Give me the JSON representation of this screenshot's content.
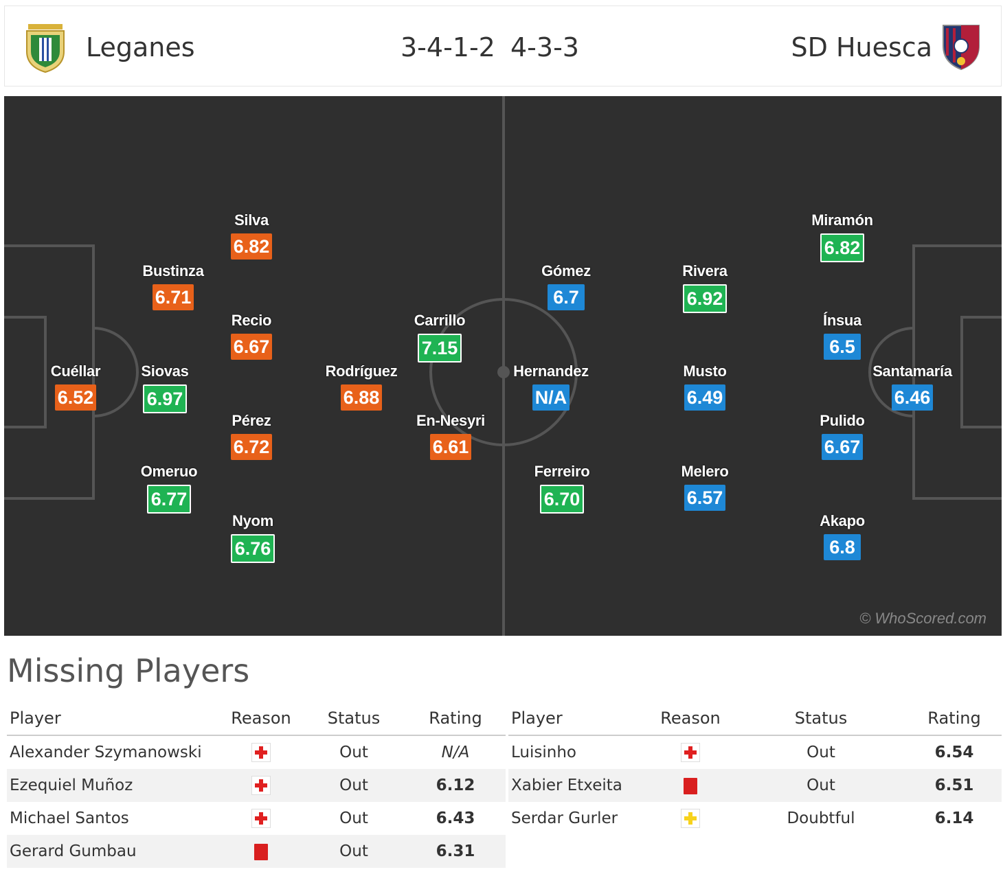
{
  "header": {
    "home_team": "Leganes",
    "away_team": "SD Huesca",
    "home_formation": "3-4-1-2",
    "away_formation": "4-3-3"
  },
  "colors": {
    "pitch": "#2f2f2f",
    "rating_orange": "#e8611a",
    "rating_green": "#1fb353",
    "rating_blue": "#1e88d6"
  },
  "pitch": {
    "watermark": "© WhoScored.com",
    "home_players": [
      {
        "name": "Cuéllar",
        "rating": "6.52",
        "color": "orange"
      },
      {
        "name": "Bustinza",
        "rating": "6.71",
        "color": "orange"
      },
      {
        "name": "Siovas",
        "rating": "6.97",
        "color": "green"
      },
      {
        "name": "Omeruo",
        "rating": "6.77",
        "color": "green"
      },
      {
        "name": "Silva",
        "rating": "6.82",
        "color": "orange"
      },
      {
        "name": "Recio",
        "rating": "6.67",
        "color": "orange"
      },
      {
        "name": "Pérez",
        "rating": "6.72",
        "color": "orange"
      },
      {
        "name": "Nyom",
        "rating": "6.76",
        "color": "green"
      },
      {
        "name": "Rodríguez",
        "rating": "6.88",
        "color": "orange"
      },
      {
        "name": "Carrillo",
        "rating": "7.15",
        "color": "green"
      },
      {
        "name": "En-Nesyri",
        "rating": "6.61",
        "color": "orange"
      }
    ],
    "away_players": [
      {
        "name": "Gómez",
        "rating": "6.7",
        "color": "blue"
      },
      {
        "name": "Hernandez",
        "rating": "N/A",
        "color": "blue"
      },
      {
        "name": "Ferreiro",
        "rating": "6.70",
        "color": "green"
      },
      {
        "name": "Rivera",
        "rating": "6.92",
        "color": "green"
      },
      {
        "name": "Musto",
        "rating": "6.49",
        "color": "blue"
      },
      {
        "name": "Melero",
        "rating": "6.57",
        "color": "blue"
      },
      {
        "name": "Miramón",
        "rating": "6.82",
        "color": "green"
      },
      {
        "name": "Ínsua",
        "rating": "6.5",
        "color": "blue"
      },
      {
        "name": "Pulido",
        "rating": "6.67",
        "color": "blue"
      },
      {
        "name": "Akapo",
        "rating": "6.8",
        "color": "blue"
      },
      {
        "name": "Santamaría",
        "rating": "6.46",
        "color": "blue"
      }
    ]
  },
  "missing": {
    "title": "Missing Players",
    "columns": [
      "Player",
      "Reason",
      "Status",
      "Rating"
    ],
    "home": [
      {
        "player": "Alexander Szymanowski",
        "reason_icon": "injury-icon",
        "status": "Out",
        "rating": "N/A"
      },
      {
        "player": "Ezequiel Muñoz",
        "reason_icon": "injury-icon",
        "status": "Out",
        "rating": "6.12"
      },
      {
        "player": "Michael Santos",
        "reason_icon": "injury-icon",
        "status": "Out",
        "rating": "6.43"
      },
      {
        "player": "Gerard Gumbau",
        "reason_icon": "red-card-icon",
        "status": "Out",
        "rating": "6.31"
      }
    ],
    "away": [
      {
        "player": "Luisinho",
        "reason_icon": "injury-icon",
        "status": "Out",
        "rating": "6.54"
      },
      {
        "player": "Xabier Etxeita",
        "reason_icon": "red-card-icon",
        "status": "Out",
        "rating": "6.51"
      },
      {
        "player": "Serdar Gurler",
        "reason_icon": "doubtful-icon",
        "status": "Doubtful",
        "rating": "6.14"
      }
    ]
  }
}
